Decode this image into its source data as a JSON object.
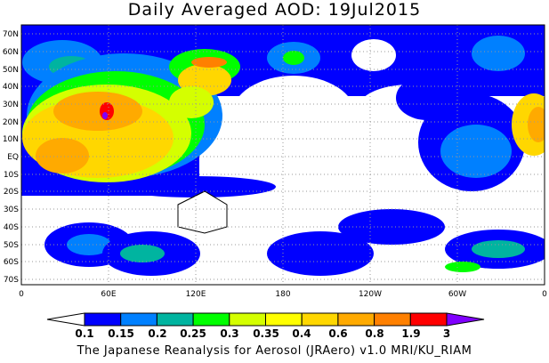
{
  "title": "Daily Averaged AOD: 19Jul2015",
  "map": {
    "lat_labels": [
      "70N",
      "60N",
      "50N",
      "40N",
      "30N",
      "20N",
      "10N",
      "EQ",
      "10S",
      "20S",
      "30S",
      "40S",
      "50S",
      "60S",
      "70S"
    ],
    "lon_labels": [
      "0",
      "60E",
      "120E",
      "180",
      "120W",
      "60W",
      "0"
    ],
    "grid": "dotted",
    "colors": {
      "c1": "#0000ff",
      "c2": "#0080ff",
      "c3": "#00b4a0",
      "c4": "#00ff00",
      "c5": "#d4ff00",
      "c6": "#ffff00",
      "c7": "#ffd700",
      "c8": "#ffaa00",
      "c9": "#ff8000",
      "c10": "#ff0000",
      "c11": "#8000ff"
    }
  },
  "colorbar": {
    "labels": [
      "0.1",
      "0.15",
      "0.2",
      "0.25",
      "0.3",
      "0.35",
      "0.4",
      "0.6",
      "0.8",
      "1.9",
      "3"
    ],
    "colors": [
      "#0000ff",
      "#0080ff",
      "#00b4a0",
      "#00ff00",
      "#d4ff00",
      "#ffff00",
      "#ffd700",
      "#ffaa00",
      "#ff8000",
      "#ff0000"
    ],
    "below_color": "#ffffff",
    "above_color": "#8000ff"
  },
  "credit": "The Japanese Reanalysis for Aerosol (JRAero) v1.0 MRI/KU_RIAM"
}
